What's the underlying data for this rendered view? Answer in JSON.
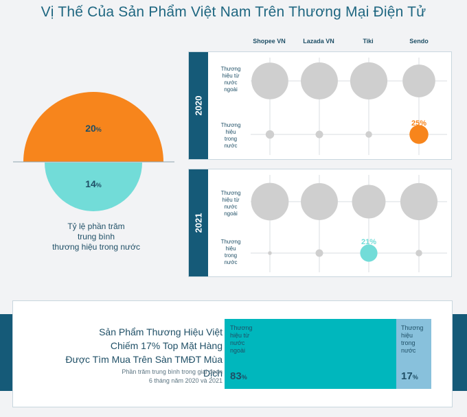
{
  "title": "Vị Thế Của Sản Phẩm Việt Nam Trên Thương Mại Điện Tử",
  "semi_chart": {
    "top_value": "20",
    "bottom_value": "14",
    "unit": "%",
    "caption": [
      "Tỷ lệ phần trăm",
      "trung bình",
      "thương hiệu trong nước"
    ],
    "colors": {
      "top": "#f7851c",
      "bottom": "#72dcd8"
    }
  },
  "columns": [
    "Shopee VN",
    "Lazada VN",
    "Tiki",
    "Sendo"
  ],
  "row_labels": {
    "foreign": [
      "Thương",
      "hiệu từ",
      "nước",
      "ngoài"
    ],
    "domestic": [
      "Thương",
      "hiệu",
      "trong",
      "nước"
    ]
  },
  "chart_data": [
    {
      "type": "scatter",
      "title": "2020",
      "categories": [
        "Shopee VN",
        "Lazada VN",
        "Tiki",
        "Sendo"
      ],
      "series": [
        {
          "name": "Thương hiệu từ nước ngoài",
          "values": [
            95,
            96,
            97,
            75
          ]
        },
        {
          "name": "Thương hiệu trong nước",
          "values": [
            5,
            4,
            3,
            25
          ]
        }
      ],
      "highlight": {
        "category": "Sendo",
        "series": "Thương hiệu trong nước",
        "label": "25%",
        "color": "#f7851c"
      }
    },
    {
      "type": "scatter",
      "title": "2021",
      "categories": [
        "Shopee VN",
        "Lazada VN",
        "Tiki",
        "Sendo"
      ],
      "series": [
        {
          "name": "Thương hiệu từ nước ngoài",
          "values": [
            99,
            96,
            79,
            97
          ]
        },
        {
          "name": "Thương hiệu trong nước",
          "values": [
            1,
            4,
            21,
            3
          ]
        }
      ],
      "highlight": {
        "category": "Tiki",
        "series": "Thương hiệu trong nước",
        "label": "21%",
        "color": "#72dcd8"
      }
    },
    {
      "type": "bar",
      "title": "Sản Phẩm Thương Hiệu Việt Chiếm 17% Top Mặt Hàng Được Tìm Mua Trên Sàn TMĐT Mùa Dịch",
      "categories": [
        "Thương hiệu từ nước ngoài",
        "Thương hiệu trong nước"
      ],
      "values": [
        83,
        17
      ],
      "colors": [
        "#00b7bd",
        "#88c1dc"
      ]
    }
  ],
  "bottom": {
    "headline": [
      "Sản Phẩm Thương Hiệu Việt",
      "Chiếm 17% Top Mặt Hàng",
      "Được Tìm Mua Trên Sàn TMĐT Mùa Dịch"
    ],
    "sub": [
      "Phần trăm trung bình trong giai đoạn",
      "6 tháng năm 2020 và 2021"
    ],
    "seg_foreign_label": [
      "Thương",
      "hiệu từ",
      "nước",
      "ngoài"
    ],
    "seg_domestic_label": [
      "Thương",
      "hiệu",
      "trong",
      "nước"
    ],
    "foreign_value": "83",
    "domestic_value": "17",
    "unit": "%"
  }
}
